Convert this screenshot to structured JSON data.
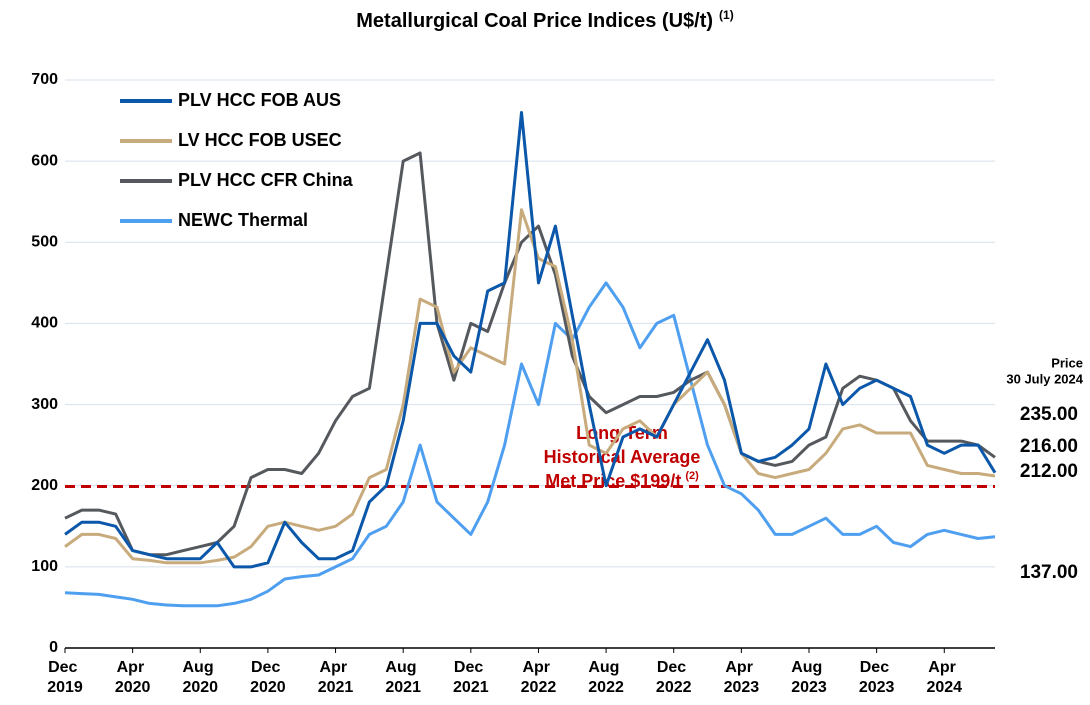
{
  "chart_data": {
    "type": "line",
    "title": "Metallurgical Coal Price Indices (U$/t)",
    "title_note": "(1)",
    "x": [
      "2019-12",
      "2020-01",
      "2020-02",
      "2020-03",
      "2020-04",
      "2020-05",
      "2020-06",
      "2020-07",
      "2020-08",
      "2020-09",
      "2020-10",
      "2020-11",
      "2020-12",
      "2021-01",
      "2021-02",
      "2021-03",
      "2021-04",
      "2021-05",
      "2021-06",
      "2021-07",
      "2021-08",
      "2021-09",
      "2021-10",
      "2021-11",
      "2021-12",
      "2022-01",
      "2022-02",
      "2022-03",
      "2022-04",
      "2022-05",
      "2022-06",
      "2022-07",
      "2022-08",
      "2022-09",
      "2022-10",
      "2022-11",
      "2022-12",
      "2023-01",
      "2023-02",
      "2023-03",
      "2023-04",
      "2023-05",
      "2023-06",
      "2023-07",
      "2023-08",
      "2023-09",
      "2023-10",
      "2023-11",
      "2023-12",
      "2024-01",
      "2024-02",
      "2024-03",
      "2024-04",
      "2024-05",
      "2024-06",
      "2024-07"
    ],
    "xlim": [
      "2019-12",
      "2024-07"
    ],
    "xticks": [
      {
        "value": "2019-12",
        "label": "Dec 2019"
      },
      {
        "value": "2020-04",
        "label": "Apr 2020"
      },
      {
        "value": "2020-08",
        "label": "Aug 2020"
      },
      {
        "value": "2020-12",
        "label": "Dec 2020"
      },
      {
        "value": "2021-04",
        "label": "Apr 2021"
      },
      {
        "value": "2021-08",
        "label": "Aug 2021"
      },
      {
        "value": "2021-12",
        "label": "Dec 2021"
      },
      {
        "value": "2022-04",
        "label": "Apr 2022"
      },
      {
        "value": "2022-08",
        "label": "Aug 2022"
      },
      {
        "value": "2022-12",
        "label": "Dec 2022"
      },
      {
        "value": "2023-04",
        "label": "Apr 2023"
      },
      {
        "value": "2023-08",
        "label": "Aug 2023"
      },
      {
        "value": "2023-12",
        "label": "Dec 2023"
      },
      {
        "value": "2024-04",
        "label": "Apr 2024"
      }
    ],
    "ylim": [
      0,
      700
    ],
    "yticks": [
      0,
      100,
      200,
      300,
      400,
      500,
      600,
      700
    ],
    "grid": true,
    "legend": "upper-left",
    "series": [
      {
        "name": "PLV HCC FOB AUS",
        "color": "#0b57aa",
        "values": [
          140,
          155,
          155,
          150,
          120,
          115,
          110,
          110,
          110,
          130,
          100,
          100,
          105,
          155,
          130,
          110,
          110,
          120,
          180,
          200,
          280,
          400,
          400,
          360,
          340,
          440,
          450,
          660,
          450,
          520,
          410,
          300,
          200,
          260,
          270,
          260,
          300,
          340,
          380,
          330,
          240,
          230,
          235,
          250,
          270,
          350,
          300,
          320,
          330,
          320,
          310,
          250,
          240,
          250,
          250,
          216
        ],
        "end_label": "216.00"
      },
      {
        "name": "LV HCC FOB USEC",
        "color": "#c8ab7c",
        "values": [
          125,
          140,
          140,
          135,
          110,
          108,
          105,
          105,
          105,
          108,
          112,
          125,
          150,
          155,
          150,
          145,
          150,
          165,
          210,
          220,
          300,
          430,
          420,
          340,
          370,
          360,
          350,
          540,
          480,
          470,
          380,
          250,
          240,
          270,
          280,
          260,
          300,
          320,
          340,
          300,
          240,
          215,
          210,
          215,
          220,
          240,
          270,
          275,
          265,
          265,
          265,
          225,
          220,
          215,
          215,
          212
        ],
        "end_label": "212.00"
      },
      {
        "name": "PLV HCC CFR China",
        "color": "#55595e",
        "values": [
          160,
          170,
          170,
          165,
          120,
          115,
          115,
          120,
          125,
          130,
          150,
          210,
          220,
          220,
          215,
          240,
          280,
          310,
          320,
          460,
          600,
          610,
          400,
          330,
          400,
          390,
          450,
          500,
          520,
          460,
          360,
          310,
          290,
          300,
          310,
          310,
          315,
          330,
          340,
          300,
          240,
          230,
          225,
          230,
          250,
          260,
          320,
          335,
          330,
          320,
          280,
          255,
          255,
          255,
          250,
          235
        ],
        "end_label": "235.00"
      },
      {
        "name": "NEWC Thermal",
        "color": "#4f9ff0",
        "values": [
          68,
          67,
          66,
          63,
          60,
          55,
          53,
          52,
          52,
          52,
          55,
          60,
          70,
          85,
          88,
          90,
          100,
          110,
          140,
          150,
          180,
          250,
          180,
          160,
          140,
          180,
          250,
          350,
          300,
          400,
          380,
          420,
          450,
          420,
          370,
          400,
          410,
          330,
          250,
          200,
          190,
          170,
          140,
          140,
          150,
          160,
          140,
          140,
          150,
          130,
          125,
          140,
          145,
          140,
          135,
          137
        ],
        "end_label": "137.00"
      }
    ],
    "end_label_title": [
      "Price",
      "30 July 2024"
    ],
    "reference_line": {
      "value": 199,
      "color": "#c00000",
      "label": [
        "Long Term",
        "Historical Average",
        "Met Price $199/t"
      ],
      "note": "(2)"
    }
  }
}
